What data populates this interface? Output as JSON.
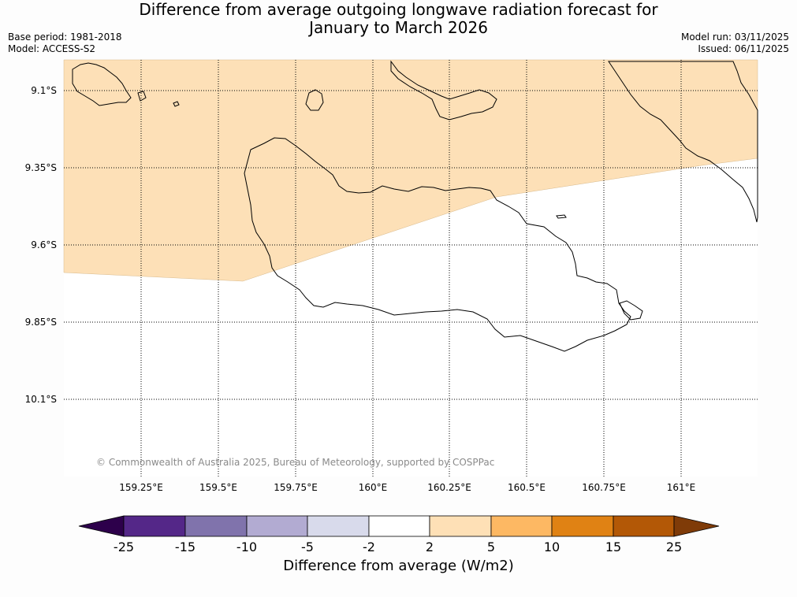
{
  "header": {
    "title_line1": "Difference from average outgoing longwave radiation forecast for",
    "title_line2": "January to March 2026",
    "base_period": "Base period: 1981-2018",
    "model": "Model: ACCESS-S2",
    "model_run": "Model run: 03/11/2025",
    "issued": "Issued: 06/11/2025"
  },
  "map": {
    "latitude_labels": [
      "9.1°S",
      "9.35°S",
      "9.6°S",
      "9.85°S",
      "10.1°S"
    ],
    "longitude_labels": [
      "159.25°E",
      "159.5°E",
      "159.75°E",
      "160°E",
      "160.25°E",
      "160.5°E",
      "160.75°E",
      "161°E"
    ],
    "copyright": "© Commonwealth of Australia 2025, Bureau of Meteorology, supported by COSPPac",
    "fill_category": "2 to 5",
    "colors": {
      "fill_2_to_5": "#fde0b7",
      "neutral": "#ffffff",
      "coast": "#000000"
    }
  },
  "colorbar": {
    "title": "Difference from average (W/m2)",
    "tick_labels": [
      "-25",
      "-15",
      "-10",
      "-5",
      "-2",
      "2",
      "5",
      "10",
      "15",
      "25"
    ],
    "colors": {
      "below_-25": "#2d004b",
      "-25_to_-15": "#542788",
      "-15_to_-10": "#8073ac",
      "-10_to_-5": "#b2abd2",
      "-5_to_-2": "#d8daeb",
      "-2_to_2": "#ffffff",
      "2_to_5": "#fee0b6",
      "5_to_10": "#fdb863",
      "10_to_15": "#e08214",
      "15_to_25": "#b35806",
      "above_25": "#7f3b08"
    }
  }
}
